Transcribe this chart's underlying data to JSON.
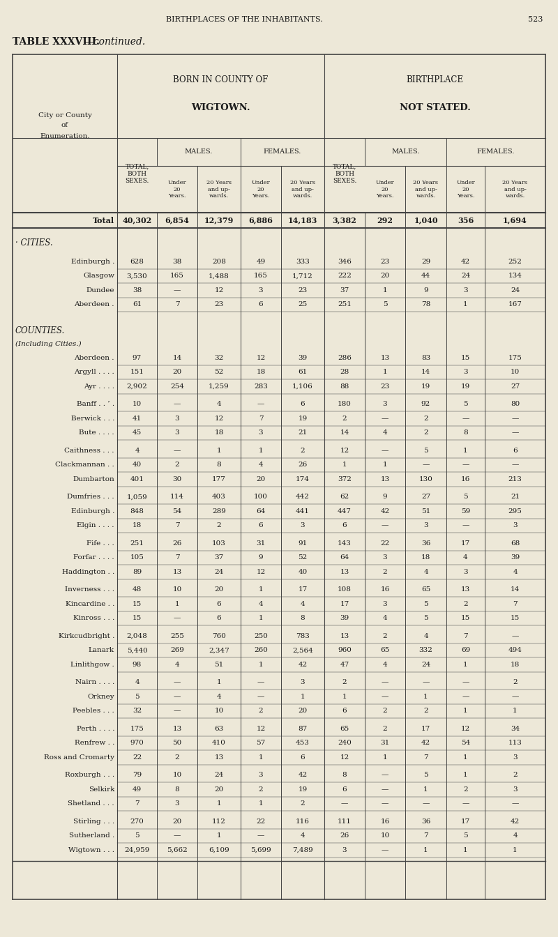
{
  "page_header": "BIRTHPLACES OF THE INHABITANTS.",
  "page_number": "523",
  "table_title": "TABLE XXXVIII.",
  "table_title2": "—continued.",
  "bg_color": "#ede8d8",
  "text_color": "#1a1a1a",
  "line_color": "#444444",
  "rows": [
    [
      "Total",
      "40,302",
      "6,854",
      "12,379",
      "6,886",
      "14,183",
      "3,382",
      "292",
      "1,040",
      "356",
      "1,694"
    ],
    [
      "Edinburgh .",
      "628",
      "38",
      "208",
      "49",
      "333",
      "346",
      "23",
      "29",
      "42",
      "252"
    ],
    [
      "Glasgow",
      "3,530",
      "165",
      "1,488",
      "165",
      "1,712",
      "222",
      "20",
      "44",
      "24",
      "134"
    ],
    [
      "Dundee",
      "38",
      "—",
      "12",
      "3",
      "23",
      "37",
      "1",
      "9",
      "3",
      "24"
    ],
    [
      "Aberdeen .",
      "61",
      "7",
      "23",
      "6",
      "25",
      "251",
      "5",
      "78",
      "1",
      "167"
    ],
    [
      "Aberdeen .",
      "97",
      "14",
      "32",
      "12",
      "39",
      "286",
      "13",
      "83",
      "15",
      "175"
    ],
    [
      "Argyll . . . .",
      "151",
      "20",
      "52",
      "18",
      "61",
      "28",
      "1",
      "14",
      "3",
      "10"
    ],
    [
      "Ayr . . . .",
      "2,902",
      "254",
      "1,259",
      "283",
      "1,106",
      "88",
      "23",
      "19",
      "19",
      "27"
    ],
    [
      "Banff . . ’ .",
      "10",
      "—",
      "4",
      "—",
      "6",
      "180",
      "3",
      "92",
      "5",
      "80"
    ],
    [
      "Berwick . . .",
      "41",
      "3",
      "12",
      "7",
      "19",
      "2",
      "—",
      "2",
      "—",
      "—"
    ],
    [
      "Bute . . . .",
      "45",
      "3",
      "18",
      "3",
      "21",
      "14",
      "4",
      "2",
      "8",
      "—"
    ],
    [
      "Caithness . . .",
      "4",
      "—",
      "1",
      "1",
      "2",
      "12",
      "—",
      "5",
      "1",
      "6"
    ],
    [
      "Clackmannan . .",
      "40",
      "2",
      "8",
      "4",
      "26",
      "1",
      "1",
      "—",
      "—",
      "—"
    ],
    [
      "Dumbarton",
      "401",
      "30",
      "177",
      "20",
      "174",
      "372",
      "13",
      "130",
      "16",
      "213"
    ],
    [
      "Dumfries . . .",
      "1,059",
      "114",
      "403",
      "100",
      "442",
      "62",
      "9",
      "27",
      "5",
      "21"
    ],
    [
      "Edinburgh .",
      "848",
      "54",
      "289",
      "64",
      "441",
      "447",
      "42",
      "51",
      "59",
      "295"
    ],
    [
      "Elgin . . . .",
      "18",
      "7",
      "2",
      "6",
      "3",
      "6",
      "—",
      "3",
      "—",
      "3"
    ],
    [
      "Fife . . .",
      "251",
      "26",
      "103",
      "31",
      "91",
      "143",
      "22",
      "36",
      "17",
      "68"
    ],
    [
      "Forfar . . . .",
      "105",
      "7",
      "37",
      "9",
      "52",
      "64",
      "3",
      "18",
      "4",
      "39"
    ],
    [
      "Haddington . .",
      "89",
      "13",
      "24",
      "12",
      "40",
      "13",
      "2",
      "4",
      "3",
      "4"
    ],
    [
      "Inverness . . .",
      "48",
      "10",
      "20",
      "1",
      "17",
      "108",
      "16",
      "65",
      "13",
      "14"
    ],
    [
      "Kincardine . .",
      "15",
      "1",
      "6",
      "4",
      "4",
      "17",
      "3",
      "5",
      "2",
      "7"
    ],
    [
      "Kinross . . .",
      "15",
      "—",
      "6",
      "1",
      "8",
      "39",
      "4",
      "5",
      "15",
      "15"
    ],
    [
      "Kirkcudbright .",
      "2,048",
      "255",
      "760",
      "250",
      "783",
      "13",
      "2",
      "4",
      "7",
      "—"
    ],
    [
      "Lanark",
      "5,440",
      "269",
      "2,347",
      "260",
      "2,564",
      "960",
      "65",
      "332",
      "69",
      "494"
    ],
    [
      "Linlithgow .",
      "98",
      "4",
      "51",
      "1",
      "42",
      "47",
      "4",
      "24",
      "1",
      "18"
    ],
    [
      "Nairn . . . .",
      "4",
      "—",
      "1",
      "—",
      "3",
      "2",
      "—",
      "—",
      "—",
      "2"
    ],
    [
      "Orkney",
      "5",
      "—",
      "4",
      "—",
      "1",
      "1",
      "—",
      "1",
      "—",
      "—"
    ],
    [
      "Peebles . . .",
      "32",
      "—",
      "10",
      "2",
      "20",
      "6",
      "2",
      "2",
      "1",
      "1"
    ],
    [
      "Perth . . . .",
      "175",
      "13",
      "63",
      "12",
      "87",
      "65",
      "2",
      "17",
      "12",
      "34"
    ],
    [
      "Renfrew . .",
      "970",
      "50",
      "410",
      "57",
      "453",
      "240",
      "31",
      "42",
      "54",
      "113"
    ],
    [
      "Ross and Cromarty",
      "22",
      "2",
      "13",
      "1",
      "6",
      "12",
      "1",
      "7",
      "1",
      "3"
    ],
    [
      "Roxburgh . . .",
      "79",
      "10",
      "24",
      "3",
      "42",
      "8",
      "—",
      "5",
      "1",
      "2"
    ],
    [
      "Selkirk",
      "49",
      "8",
      "20",
      "2",
      "19",
      "6",
      "—",
      "1",
      "2",
      "3"
    ],
    [
      "Shetland . . .",
      "7",
      "3",
      "1",
      "1",
      "2",
      "—",
      "—",
      "—",
      "—",
      "—"
    ],
    [
      "Stirling . . .",
      "270",
      "20",
      "112",
      "22",
      "116",
      "111",
      "16",
      "36",
      "17",
      "42"
    ],
    [
      "Sutherland .",
      "5",
      "—",
      "1",
      "—",
      "4",
      "26",
      "10",
      "7",
      "5",
      "4"
    ],
    [
      "Wigtown . . .",
      "24,959",
      "5,662",
      "6,109",
      "5,699",
      "7,489",
      "3",
      "—",
      "1",
      "1",
      "1"
    ]
  ]
}
